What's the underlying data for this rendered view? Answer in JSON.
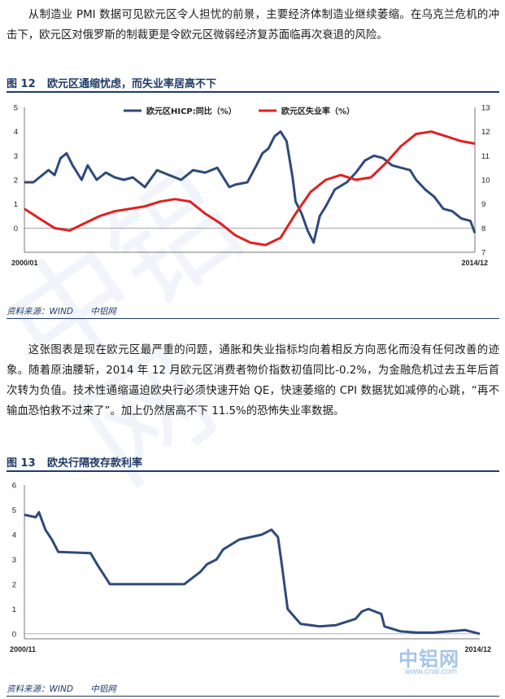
{
  "paragraph1": "从制造业 PMI 数据可见欧元区令人担忧的前景，主要经济体制造业继续萎缩。在乌克兰危机的冲击下，欧元区对俄罗斯的制裁更是令欧元区微弱经济复苏面临再次衰退的风险。",
  "figure12": {
    "number": "图 12",
    "title": "欧元区通缩忧虑，而失业率居高不下",
    "source": [
      "资料来源：WIND",
      "中铝网"
    ]
  },
  "paragraph2": "这张图表是现在欧元区最严重的问题，通胀和失业指标均向着相反方向恶化而没有任何改善的迹象。随着原油腰斩，2014 年 12 月欧元区消费者物价指数初值同比-0.2%，为金融危机过去五年后首次转为负值。技术性通缩逼迫欧央行必须快速开始 QE，快速萎缩的 CPI 数据犹如减停的心跳，“再不输血恐怕救不过来了”。加上仍然居高不下 11.5%的恐怖失业率数据。",
  "figure13": {
    "number": "图 13",
    "title": "欧央行隔夜存款利率",
    "source": [
      "资料来源：WIND",
      "中铝网"
    ]
  },
  "watermark_text": "中铝网",
  "logo": {
    "text": "中铝网",
    "url": "www.cnal.com"
  },
  "colors": {
    "hicp": "#2e4a7a",
    "unemployment": "#e0201f",
    "rate": "#2e4a7a",
    "accent": "#1f3b67"
  },
  "chart_data": [
    {
      "type": "line",
      "x_start_label": "2000/01",
      "x_end_label": "2014/12",
      "ylim": [
        -1,
        5
      ],
      "yticks": [
        0,
        1,
        2,
        3,
        4,
        5
      ],
      "y2lim": [
        7,
        13
      ],
      "y2ticks": [
        7,
        8,
        9,
        10,
        11,
        12,
        13
      ],
      "legend_position": "top",
      "series": [
        {
          "name": "欧元区HICP:同比（%）",
          "axis": "left",
          "color": "#2e4a7a",
          "x": [
            2000.0,
            2000.3,
            2000.5,
            2000.8,
            2001.0,
            2001.2,
            2001.4,
            2001.6,
            2001.9,
            2002.1,
            2002.4,
            2002.7,
            2003.0,
            2003.3,
            2003.6,
            2004.0,
            2004.4,
            2004.8,
            2005.2,
            2005.6,
            2006.0,
            2006.4,
            2006.8,
            2007.0,
            2007.4,
            2007.7,
            2007.9,
            2008.1,
            2008.3,
            2008.5,
            2008.7,
            2008.9,
            2009.0,
            2009.2,
            2009.4,
            2009.6,
            2009.8,
            2010.0,
            2010.3,
            2010.7,
            2011.0,
            2011.3,
            2011.6,
            2011.9,
            2012.2,
            2012.5,
            2012.8,
            2013.0,
            2013.3,
            2013.6,
            2013.9,
            2014.2,
            2014.5,
            2014.8,
            2014.95
          ],
          "y": [
            1.9,
            1.9,
            2.1,
            2.4,
            2.2,
            2.9,
            3.1,
            2.6,
            2.0,
            2.6,
            2.0,
            2.3,
            2.1,
            2.0,
            2.1,
            1.7,
            2.4,
            2.2,
            2.0,
            2.4,
            2.3,
            2.5,
            1.7,
            1.8,
            1.9,
            2.6,
            3.1,
            3.3,
            3.8,
            4.0,
            3.6,
            2.1,
            1.1,
            0.6,
            -0.1,
            -0.6,
            0.5,
            0.9,
            1.6,
            1.9,
            2.3,
            2.8,
            3.0,
            2.9,
            2.6,
            2.5,
            2.4,
            2.0,
            1.6,
            1.3,
            0.8,
            0.7,
            0.4,
            0.3,
            -0.2
          ]
        },
        {
          "name": "欧元区失业率（%）",
          "axis": "right",
          "color": "#e0201f",
          "x": [
            2000.0,
            2000.5,
            2001.0,
            2001.5,
            2002.0,
            2002.5,
            2003.0,
            2003.5,
            2004.0,
            2004.5,
            2005.0,
            2005.5,
            2006.0,
            2006.5,
            2007.0,
            2007.5,
            2008.0,
            2008.5,
            2009.0,
            2009.5,
            2010.0,
            2010.5,
            2011.0,
            2011.5,
            2012.0,
            2012.5,
            2013.0,
            2013.5,
            2014.0,
            2014.5,
            2014.95
          ],
          "y": [
            8.8,
            8.4,
            8.0,
            7.9,
            8.2,
            8.5,
            8.7,
            8.8,
            8.9,
            9.1,
            9.2,
            9.1,
            8.6,
            8.2,
            7.7,
            7.4,
            7.3,
            7.6,
            8.6,
            9.5,
            10.0,
            10.2,
            10.0,
            10.1,
            10.7,
            11.4,
            11.9,
            12.0,
            11.8,
            11.6,
            11.5
          ]
        }
      ]
    },
    {
      "type": "line",
      "x_start_label": "2000/11",
      "x_end_label": "2014/12",
      "ylim": [
        -0.2,
        6
      ],
      "yticks": [
        0,
        1,
        2,
        3,
        4,
        5,
        6
      ],
      "series": [
        {
          "color": "#2e4a7a",
          "x": [
            2000.85,
            2001.2,
            2001.3,
            2001.5,
            2001.7,
            2001.9,
            2002.9,
            2003.1,
            2003.5,
            2005.8,
            2006.0,
            2006.3,
            2006.5,
            2006.8,
            2007.0,
            2007.5,
            2008.2,
            2008.5,
            2008.7,
            2008.8,
            2008.9,
            2009.0,
            2009.4,
            2010.0,
            2010.5,
            2011.1,
            2011.3,
            2011.5,
            2011.9,
            2012.0,
            2012.5,
            2013.0,
            2013.5,
            2014.0,
            2014.5,
            2014.95
          ],
          "y": [
            4.8,
            4.7,
            4.9,
            4.2,
            3.8,
            3.3,
            3.25,
            2.8,
            2.0,
            2.0,
            2.2,
            2.5,
            2.8,
            3.0,
            3.4,
            3.8,
            4.0,
            4.2,
            3.9,
            3.0,
            2.0,
            1.0,
            0.4,
            0.3,
            0.35,
            0.6,
            0.9,
            1.0,
            0.8,
            0.3,
            0.1,
            0.05,
            0.05,
            0.1,
            0.15,
            0.0
          ]
        }
      ]
    }
  ]
}
